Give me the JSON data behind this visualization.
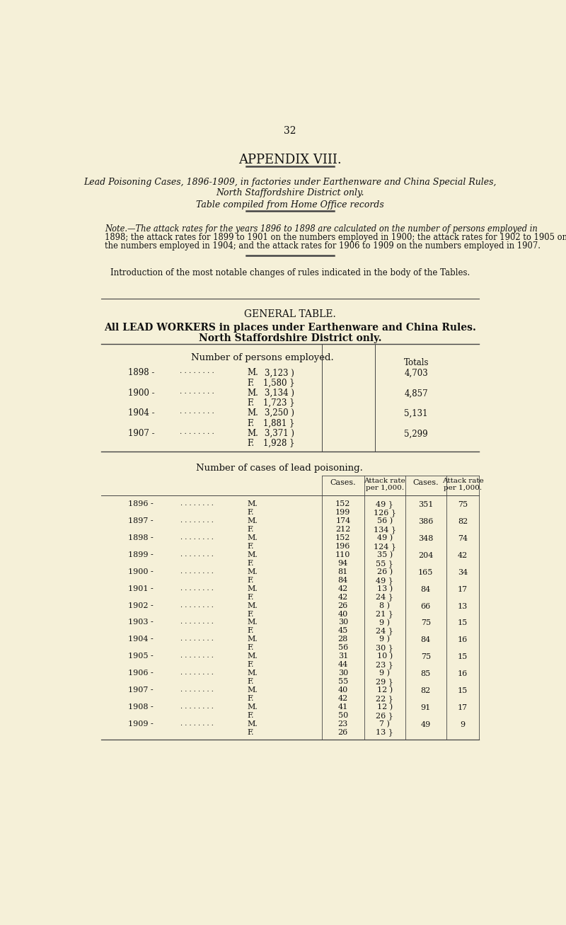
{
  "bg_color": "#f5f0d8",
  "page_number": "32",
  "appendix_title": "APPENDIX VIII.",
  "subtitle1": "Lead Poisoning Cases, 1896-1909, in factories under Earthenware and China Special Rules,",
  "subtitle2": "North Staffordshire District only.",
  "subtitle3": "Table compiled from Home Office records",
  "note_lines": [
    "Note.—The attack rates for the years 1896 to 1898 are calculated on the number of persons employed in",
    "1898; the attack rates for 1899 to 1901 on the numbers employed in 1900; the attack rates for 1902 to 1905 on",
    "the numbers employed in 1904; and the attack rates for 1906 to 1909 on the numbers employed in 1907."
  ],
  "intro_text": "Introduction of the most notable changes of rules indicated in the body of the Tables.",
  "general_table_title": "GENERAL TABLE.",
  "general_table_subtitle1": "All LEAD WORKERS in places under Earthenware and China Rules.",
  "general_table_subtitle2": "North Staffordshire District only.",
  "employed_header": "Number of persons employed.",
  "employed_totals_header": "Totals",
  "employed_data": [
    {
      "year": "1898",
      "M": "3,123",
      "F": "1,580",
      "total": "4,703"
    },
    {
      "year": "1900",
      "M": "3,134",
      "F": "1,723",
      "total": "4,857"
    },
    {
      "year": "1904",
      "M": "3,250",
      "F": "1,881",
      "total": "5,131"
    },
    {
      "year": "1907",
      "M": "3,371",
      "F": "1,928",
      "total": "5,299"
    }
  ],
  "cases_header": "Number of cases of lead poisoning.",
  "cases_col1": "Cases.",
  "cases_col2": "Attack rate\nper 1,000.",
  "cases_col3": "Cases.",
  "cases_col4": "Attack rate\nper 1,000.",
  "cases_data": [
    {
      "year": "1896",
      "M_cases": "152",
      "M_rate": "49 }",
      "F_cases": "199",
      "F_rate": "126 }",
      "total_cases": "351",
      "total_rate": "75"
    },
    {
      "year": "1897",
      "M_cases": "174",
      "M_rate": "56 )",
      "F_cases": "212",
      "F_rate": "134 }",
      "total_cases": "386",
      "total_rate": "82"
    },
    {
      "year": "1898",
      "M_cases": "152",
      "M_rate": "49 )",
      "F_cases": "196",
      "F_rate": "124 }",
      "total_cases": "348",
      "total_rate": "74"
    },
    {
      "year": "1899",
      "M_cases": "110",
      "M_rate": "35 )",
      "F_cases": "94",
      "F_rate": "55 }",
      "total_cases": "204",
      "total_rate": "42"
    },
    {
      "year": "1900",
      "M_cases": "81",
      "M_rate": "26 )",
      "F_cases": "84",
      "F_rate": "49 }",
      "total_cases": "165",
      "total_rate": "34"
    },
    {
      "year": "1901",
      "M_cases": "42",
      "M_rate": "13 )",
      "F_cases": "42",
      "F_rate": "24 }",
      "total_cases": "84",
      "total_rate": "17"
    },
    {
      "year": "1902",
      "M_cases": "26",
      "M_rate": "8 )",
      "F_cases": "40",
      "F_rate": "21 }",
      "total_cases": "66",
      "total_rate": "13"
    },
    {
      "year": "1903",
      "M_cases": "30",
      "M_rate": "9 )",
      "F_cases": "45",
      "F_rate": "24 }",
      "total_cases": "75",
      "total_rate": "15"
    },
    {
      "year": "1904",
      "M_cases": "28",
      "M_rate": "9 )",
      "F_cases": "56",
      "F_rate": "30 }",
      "total_cases": "84",
      "total_rate": "16"
    },
    {
      "year": "1905",
      "M_cases": "31",
      "M_rate": "10 )",
      "F_cases": "44",
      "F_rate": "23 }",
      "total_cases": "75",
      "total_rate": "15"
    },
    {
      "year": "1906",
      "M_cases": "30",
      "M_rate": "9 )",
      "F_cases": "55",
      "F_rate": "29 }",
      "total_cases": "85",
      "total_rate": "16"
    },
    {
      "year": "1907",
      "M_cases": "40",
      "M_rate": "12 )",
      "F_cases": "42",
      "F_rate": "22 }",
      "total_cases": "82",
      "total_rate": "15"
    },
    {
      "year": "1908",
      "M_cases": "41",
      "M_rate": "12 )",
      "F_cases": "50",
      "F_rate": "26 }",
      "total_cases": "91",
      "total_rate": "17"
    },
    {
      "year": "1909",
      "M_cases": "23",
      "M_rate": "7 )",
      "F_cases": "26",
      "F_rate": "13 }",
      "total_cases": "49",
      "total_rate": "9"
    }
  ],
  "dots": ". . . . . . . ."
}
